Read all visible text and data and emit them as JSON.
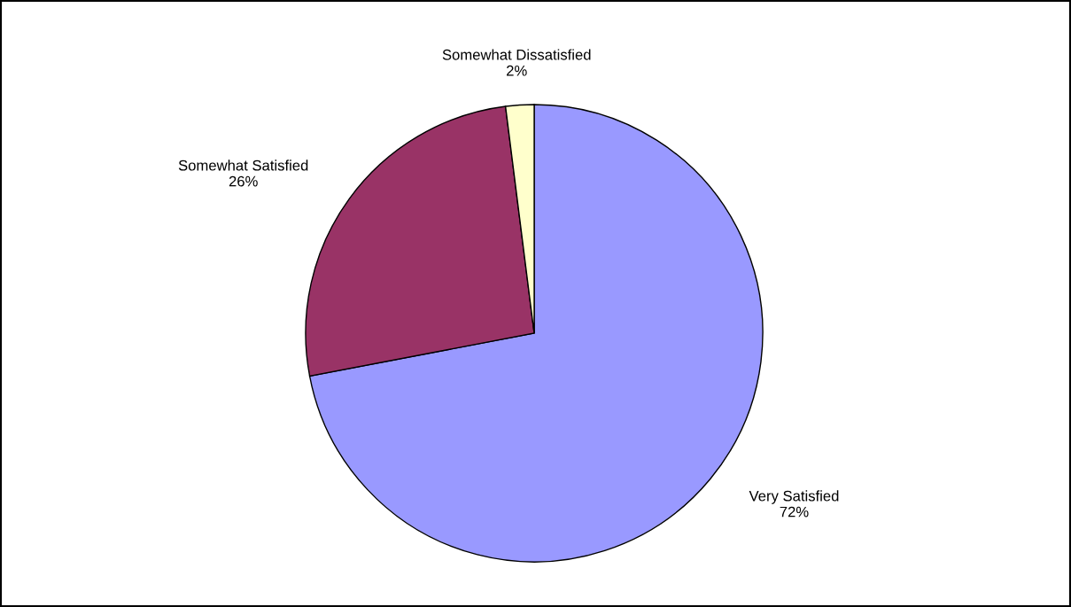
{
  "chart_data": {
    "type": "pie",
    "categories": [
      "Very Satisfied",
      "Somewhat Satisfied",
      "Somewhat Dissatisfied"
    ],
    "values": [
      72,
      26,
      2
    ],
    "value_labels": [
      "72%",
      "26%",
      "2%"
    ],
    "colors": [
      "#9999ff",
      "#993366",
      "#ffffcc"
    ],
    "legend": false
  }
}
